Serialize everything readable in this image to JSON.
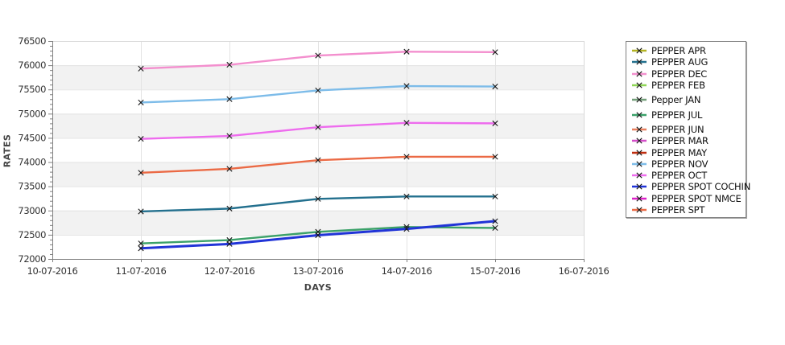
{
  "chart_data": {
    "type": "line",
    "title": "",
    "xlabel": "DAYS",
    "ylabel": "RATES",
    "x_axis_ticks": [
      "10-07-2016",
      "11-07-2016",
      "12-07-2016",
      "13-07-2016",
      "14-07-2016",
      "15-07-2016",
      "16-07-2016"
    ],
    "x": [
      "11-07-2016",
      "12-07-2016",
      "13-07-2016",
      "14-07-2016",
      "15-07-2016"
    ],
    "ylim": [
      72000,
      76500
    ],
    "y_tick_step": 500,
    "y_minor_tick_step": 100,
    "grid": true,
    "band_colors": [
      "#ffffff",
      "#f2f2f2"
    ],
    "legend_position": "right-outside",
    "marker": "x",
    "series": [
      {
        "name": "PEPPER APR",
        "color": "#b3b323",
        "values": []
      },
      {
        "name": "PEPPER AUG",
        "color": "#23708e",
        "values": [
          72980,
          73040,
          73240,
          73290,
          73290
        ]
      },
      {
        "name": "PEPPER DEC",
        "color": "#f38fce",
        "values": [
          75930,
          76010,
          76200,
          76280,
          76270
        ]
      },
      {
        "name": "PEPPER FEB",
        "color": "#8fd657",
        "values": []
      },
      {
        "name": "Pepper JAN",
        "color": "#719d78",
        "values": []
      },
      {
        "name": "PEPPER JUL",
        "color": "#3ba169",
        "values": [
          72320,
          72390,
          72560,
          72660,
          72640
        ]
      },
      {
        "name": "PEPPER JUN",
        "color": "#e87f5e",
        "values": []
      },
      {
        "name": "PEPPER MAR",
        "color": "#d44fc8",
        "values": []
      },
      {
        "name": "PEPPER MAY",
        "color": "#bf2e10",
        "values": []
      },
      {
        "name": "PEPPER NOV",
        "color": "#7dbce9",
        "values": [
          75230,
          75300,
          75480,
          75570,
          75560
        ]
      },
      {
        "name": "PEPPER OCT",
        "color": "#ee6cee",
        "values": [
          74480,
          74540,
          74720,
          74810,
          74800
        ]
      },
      {
        "name": "PEPPER SPOT COCHIN",
        "color": "#2134d7",
        "values": [
          72220,
          72310,
          72490,
          72620,
          72780
        ]
      },
      {
        "name": "PEPPER SPOT NMCE",
        "color": "#dc22c8",
        "values": []
      },
      {
        "name": "PEPPER SPT",
        "color": "#eb6a45",
        "values": [
          73780,
          73860,
          74040,
          74110,
          74110
        ]
      }
    ]
  }
}
